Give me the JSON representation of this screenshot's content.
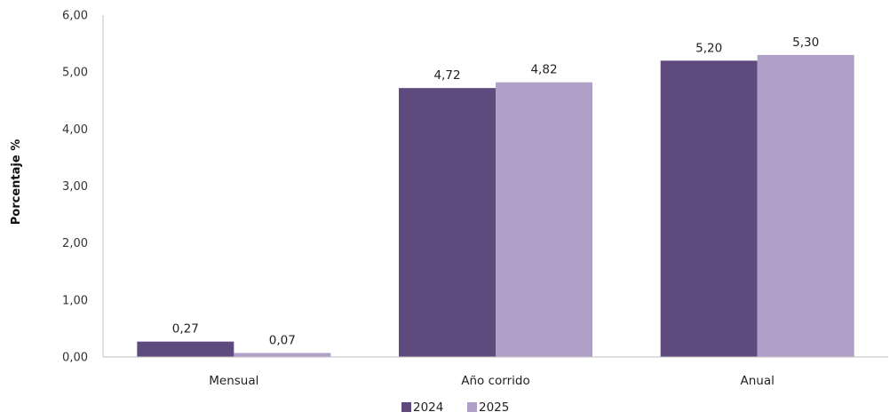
{
  "chart_data": {
    "type": "bar",
    "categories": [
      "Mensual",
      "Año corrido",
      "Anual"
    ],
    "series": [
      {
        "name": "2024",
        "values": [
          0.27,
          4.72,
          5.2
        ],
        "labels": [
          "0,27",
          "4,72",
          "5,20"
        ],
        "color": "#5f4a7e"
      },
      {
        "name": "2025",
        "values": [
          0.07,
          4.82,
          5.3
        ],
        "labels": [
          "0,07",
          "4,82",
          "5,30"
        ],
        "color": "#b0a0c8"
      }
    ],
    "ylabel": "Porcentaje %",
    "xlabel": "",
    "ylim": [
      0,
      6
    ],
    "yticks": [
      "0,00",
      "1,00",
      "2,00",
      "3,00",
      "4,00",
      "5,00",
      "6,00"
    ],
    "grid": false,
    "legend_position": "bottom"
  }
}
